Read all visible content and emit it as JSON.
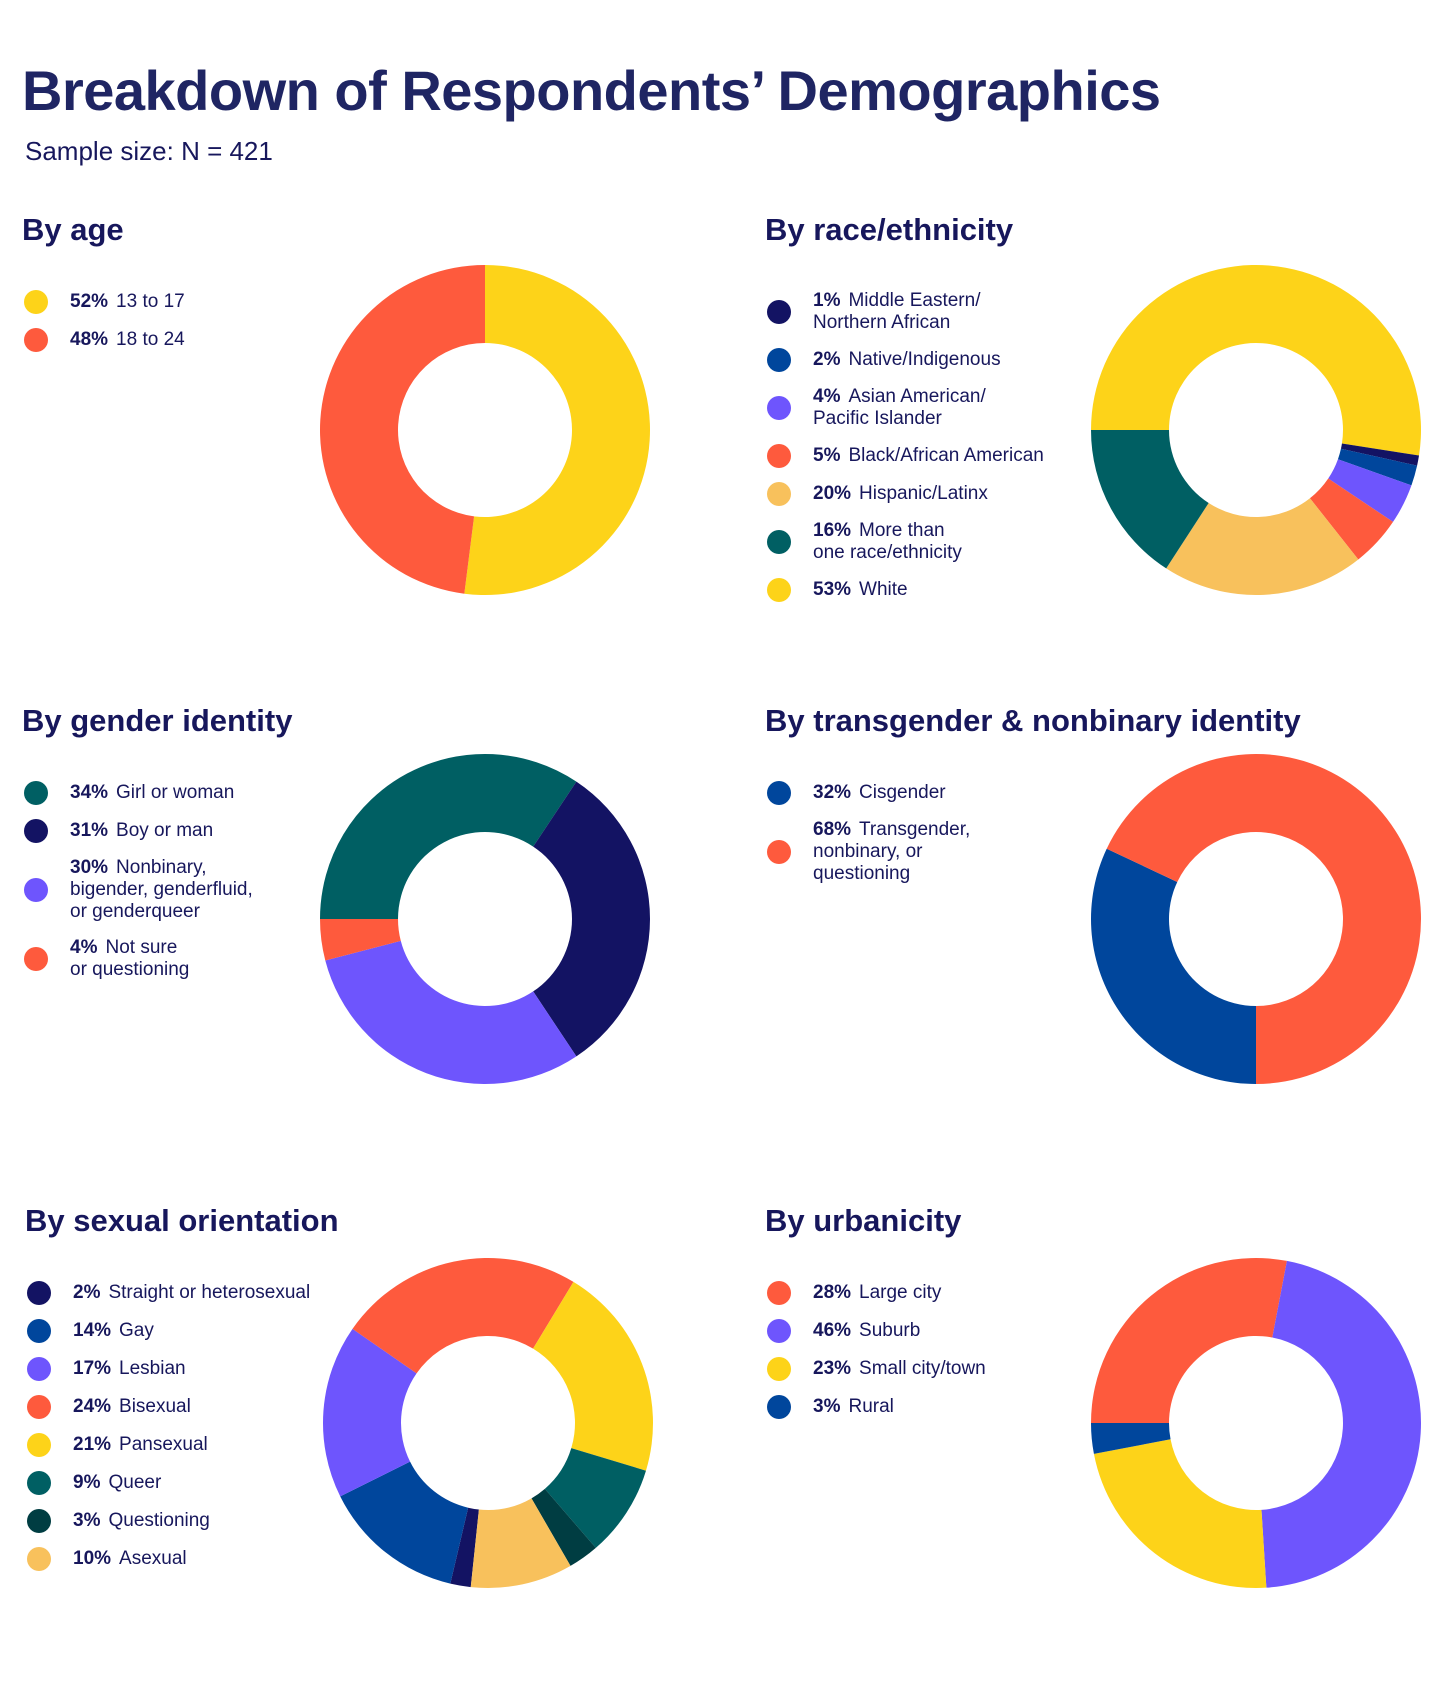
{
  "header": {
    "title": "Breakdown of Respondents’ Demographics",
    "subtitle": "Sample size: N = 421"
  },
  "chart_data": [
    {
      "type": "pie",
      "title": "By age",
      "categories": [
        "13 to 17",
        "18 to 24"
      ],
      "values": [
        52,
        48
      ],
      "colors": [
        "#fdd319",
        "#fe5a3d"
      ]
    },
    {
      "type": "pie",
      "title": "By race/ethnicity",
      "categories": [
        "Middle Eastern/\nNorthern African",
        "Native/Indigenous",
        "Asian American/\nPacific Islander",
        "Black/African American",
        "Hispanic/Latinx",
        "More than\none race/ethnicity",
        "White"
      ],
      "values": [
        1,
        2,
        4,
        5,
        20,
        16,
        53
      ],
      "colors": [
        "#131363",
        "#00469c",
        "#6e55fd",
        "#fe5a3d",
        "#f8c15c",
        "#005f63",
        "#fdd319"
      ]
    },
    {
      "type": "pie",
      "title": "By gender identity",
      "categories": [
        "Girl or woman",
        "Boy or man",
        "Nonbinary,\nbigender, genderfluid,\nor genderqueer",
        "Not sure\nor questioning"
      ],
      "values": [
        34,
        31,
        30,
        4
      ],
      "colors": [
        "#005f63",
        "#131363",
        "#6e55fd",
        "#fe5a3d"
      ]
    },
    {
      "type": "pie",
      "title": "By transgender & nonbinary identity",
      "categories": [
        "Cisgender",
        "Transgender,\nnonbinary, or\nquestioning"
      ],
      "values": [
        32,
        68
      ],
      "colors": [
        "#00469c",
        "#fe5a3d"
      ]
    },
    {
      "type": "pie",
      "title": "By sexual orientation",
      "categories": [
        "Straight or heterosexual",
        "Gay",
        "Lesbian",
        "Bisexual",
        "Pansexual",
        "Queer",
        "Questioning",
        "Asexual"
      ],
      "values": [
        2,
        14,
        17,
        24,
        21,
        9,
        3,
        10
      ],
      "colors": [
        "#131363",
        "#00469c",
        "#6e55fd",
        "#fe5a3d",
        "#fdd319",
        "#005f63",
        "#003d42",
        "#f8c15c"
      ]
    },
    {
      "type": "pie",
      "title": "By urbanicity",
      "categories": [
        "Large city",
        "Suburb",
        "Small city/town",
        "Rural"
      ],
      "values": [
        28,
        46,
        23,
        3
      ],
      "colors": [
        "#fe5a3d",
        "#6e55fd",
        "#fdd319",
        "#00469c"
      ]
    }
  ]
}
